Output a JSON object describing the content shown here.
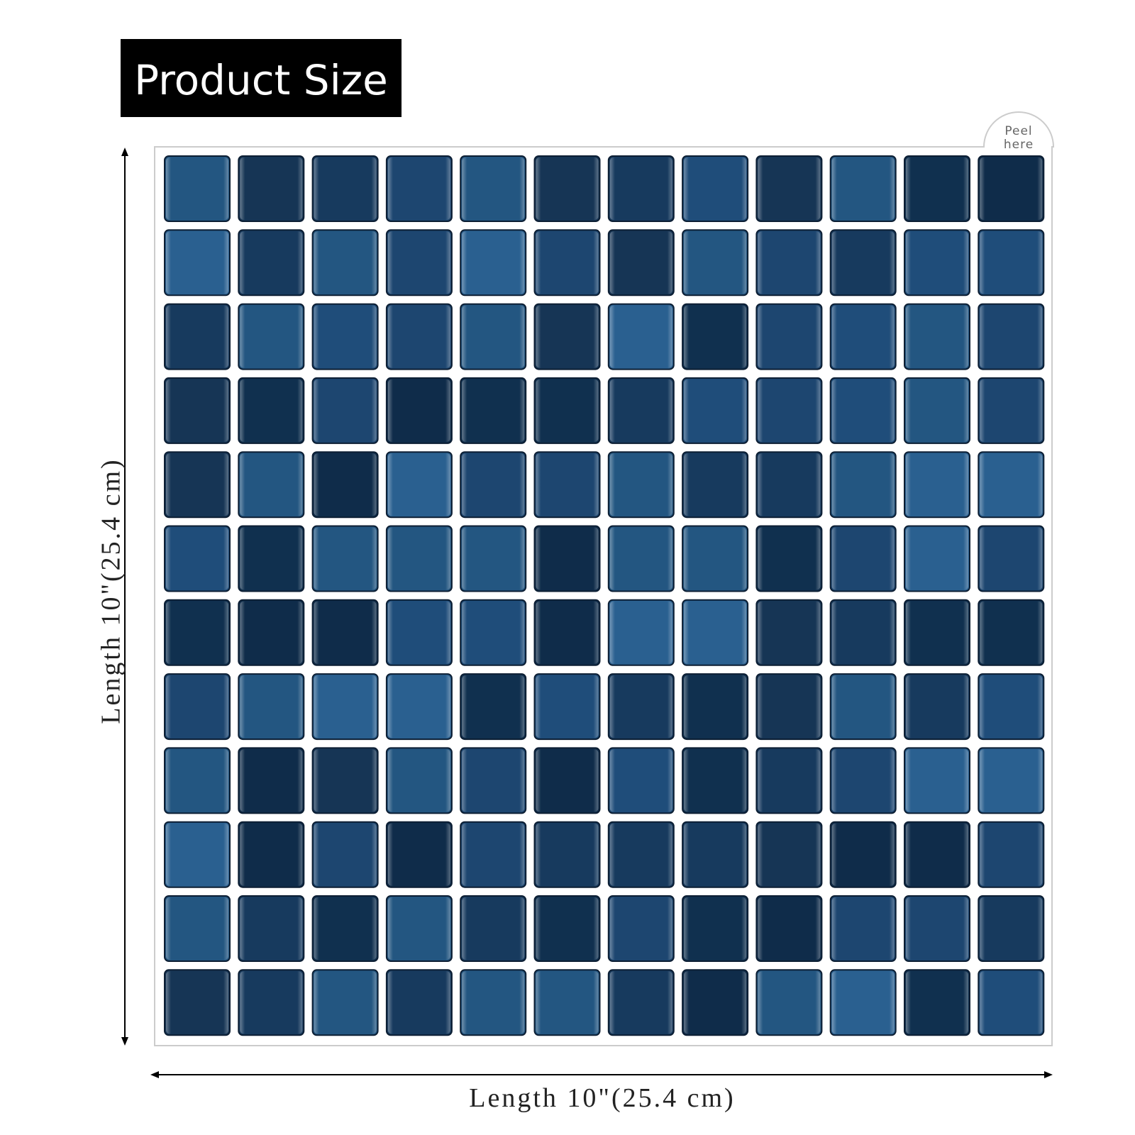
{
  "header": {
    "title": "Product Size"
  },
  "tab": {
    "line1": "Peel",
    "line2": "here"
  },
  "dimensions": {
    "height_label": "Length 10\"(25.4 cm)",
    "width_label": "Length 10\"(25.4 cm)"
  }
}
